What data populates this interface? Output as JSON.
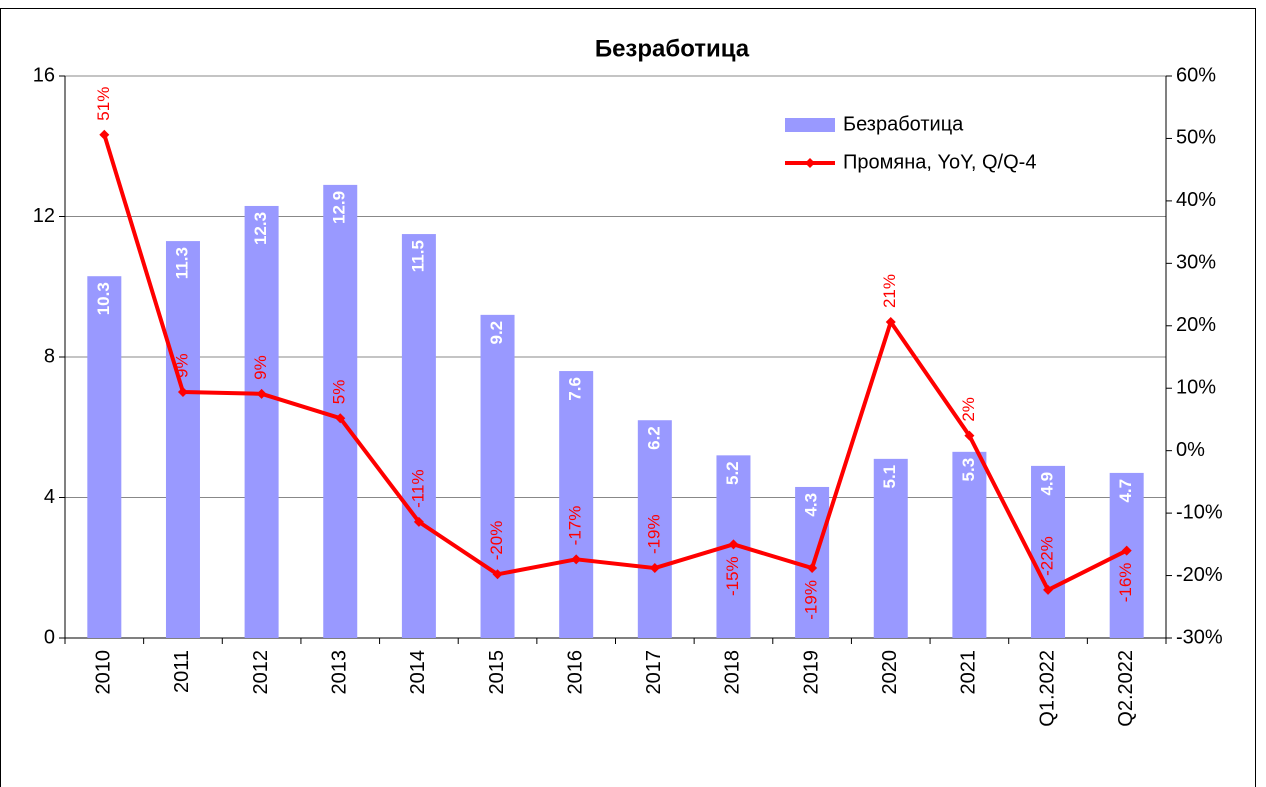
{
  "chart_data": {
    "type": "bar_line",
    "title": "Безработица",
    "categories": [
      "2010",
      "2011",
      "2012",
      "2013",
      "2014",
      "2015",
      "2016",
      "2017",
      "2018",
      "2019",
      "2020",
      "2021",
      "Q1.2022",
      "Q2.2022"
    ],
    "series": [
      {
        "name": "Безработица",
        "type": "bar",
        "color": "#9999ff",
        "values": [
          10.3,
          11.3,
          12.3,
          12.9,
          11.5,
          9.2,
          7.6,
          6.2,
          5.2,
          4.3,
          5.1,
          5.3,
          4.9,
          4.7
        ]
      },
      {
        "name": "Промяна, YoY, Q/Q-4",
        "type": "line",
        "axis": "y2",
        "color": "#ff0000",
        "values": [
          50.6,
          9.4,
          9.1,
          5.2,
          -11.4,
          -19.8,
          -17.4,
          -18.8,
          -15.0,
          -18.8,
          20.6,
          2.4,
          -22.3,
          -16.0
        ],
        "value_labels": [
          "51%",
          "9%",
          "9%",
          "5%",
          "-11%",
          "-20%",
          "-17%",
          "-19%",
          "-15%",
          "-19%",
          "21%",
          "2%",
          "-22%",
          "-16%"
        ]
      }
    ],
    "ylim": [
      0,
      16
    ],
    "yticks": [
      0,
      4,
      8,
      12,
      16
    ],
    "y2lim": [
      -30,
      60
    ],
    "y2ticks": [
      {
        "value": -30,
        "label": "-30%"
      },
      {
        "value": -20,
        "label": "-20%"
      },
      {
        "value": -10,
        "label": "-10%"
      },
      {
        "value": 0,
        "label": "0%"
      },
      {
        "value": 10,
        "label": "10%"
      },
      {
        "value": 20,
        "label": "20%"
      },
      {
        "value": 30,
        "label": "30%"
      },
      {
        "value": 40,
        "label": "40%"
      },
      {
        "value": 50,
        "label": "50%"
      },
      {
        "value": 60,
        "label": "60%"
      }
    ],
    "grid": true
  }
}
